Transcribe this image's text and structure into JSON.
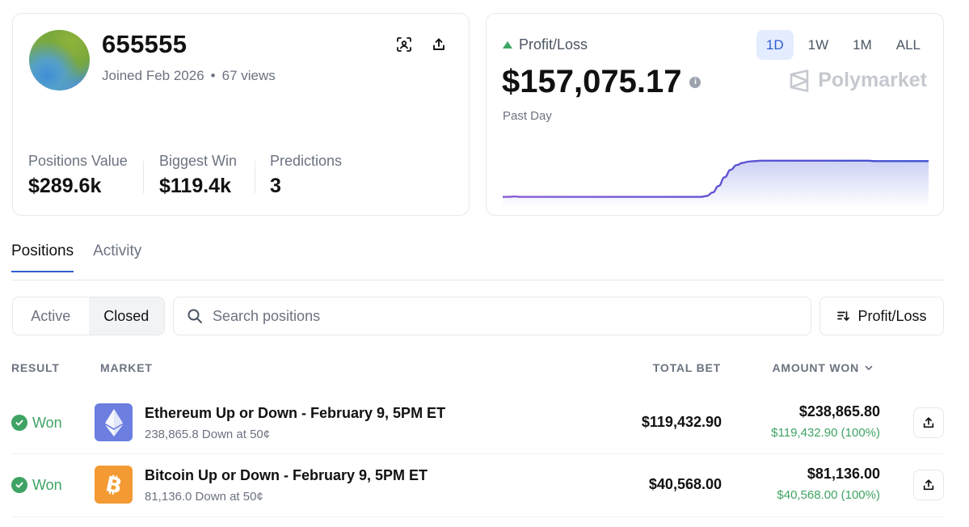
{
  "profile": {
    "username": "655555",
    "joined": "Joined Feb 2026",
    "views": "67 views",
    "stats": [
      {
        "label": "Positions Value",
        "value": "$289.6k"
      },
      {
        "label": "Biggest Win",
        "value": "$119.4k"
      },
      {
        "label": "Predictions",
        "value": "3"
      }
    ]
  },
  "pnl": {
    "label": "Profit/Loss",
    "value": "$157,075.17",
    "period": "Past Day",
    "ranges": [
      "1D",
      "1W",
      "1M",
      "ALL"
    ],
    "active_range": "1D",
    "brand": "Polymarket",
    "trend_color": "#3fa364",
    "line_color_start": "#8a5cd6",
    "line_color_end": "#3b4fd0",
    "sparkline": [
      0.1,
      0.1,
      0.11,
      0.1,
      0.1,
      0.1,
      0.1,
      0.1,
      0.1,
      0.1,
      0.1,
      0.1,
      0.1,
      0.1,
      0.1,
      0.1,
      0.1,
      0.1,
      0.1,
      0.1,
      0.1,
      0.1,
      0.1,
      0.1,
      0.1,
      0.1,
      0.1,
      0.1,
      0.1,
      0.1,
      0.1,
      0.1,
      0.1,
      0.1,
      0.12,
      0.2,
      0.35,
      0.55,
      0.72,
      0.83,
      0.88,
      0.91,
      0.92,
      0.93,
      0.93,
      0.93,
      0.93,
      0.93,
      0.93,
      0.93,
      0.93,
      0.93,
      0.93,
      0.93,
      0.93,
      0.93,
      0.93,
      0.93,
      0.93,
      0.93,
      0.93,
      0.93,
      0.92,
      0.92,
      0.92,
      0.92,
      0.92,
      0.92,
      0.92,
      0.92,
      0.92,
      0.92
    ]
  },
  "tabs": {
    "positions": "Positions",
    "activity": "Activity"
  },
  "filters": {
    "active": "Active",
    "closed": "Closed",
    "search_placeholder": "Search positions",
    "sort_label": "Profit/Loss"
  },
  "table": {
    "headers": {
      "result": "RESULT",
      "market": "MARKET",
      "total_bet": "TOTAL BET",
      "amount_won": "AMOUNT WON"
    },
    "rows": [
      {
        "result": "Won",
        "icon": "ethereum-icon",
        "title": "Ethereum Up or Down - February 9, 5PM ET",
        "subtitle": "238,865.8 Down at 50¢",
        "total_bet": "$119,432.90",
        "amount_won": "$238,865.80",
        "profit": "$119,432.90 (100%)"
      },
      {
        "result": "Won",
        "icon": "bitcoin-icon",
        "title": "Bitcoin Up or Down - February 9, 5PM ET",
        "subtitle": "81,136.0 Down at 50¢",
        "total_bet": "$40,568.00",
        "amount_won": "$81,136.00",
        "profit": "$40,568.00 (100%)"
      }
    ]
  },
  "colors": {
    "accent": "#2f5fd0",
    "success": "#3fa364",
    "ethereum": "#6c7ee0",
    "bitcoin": "#f39a33"
  }
}
